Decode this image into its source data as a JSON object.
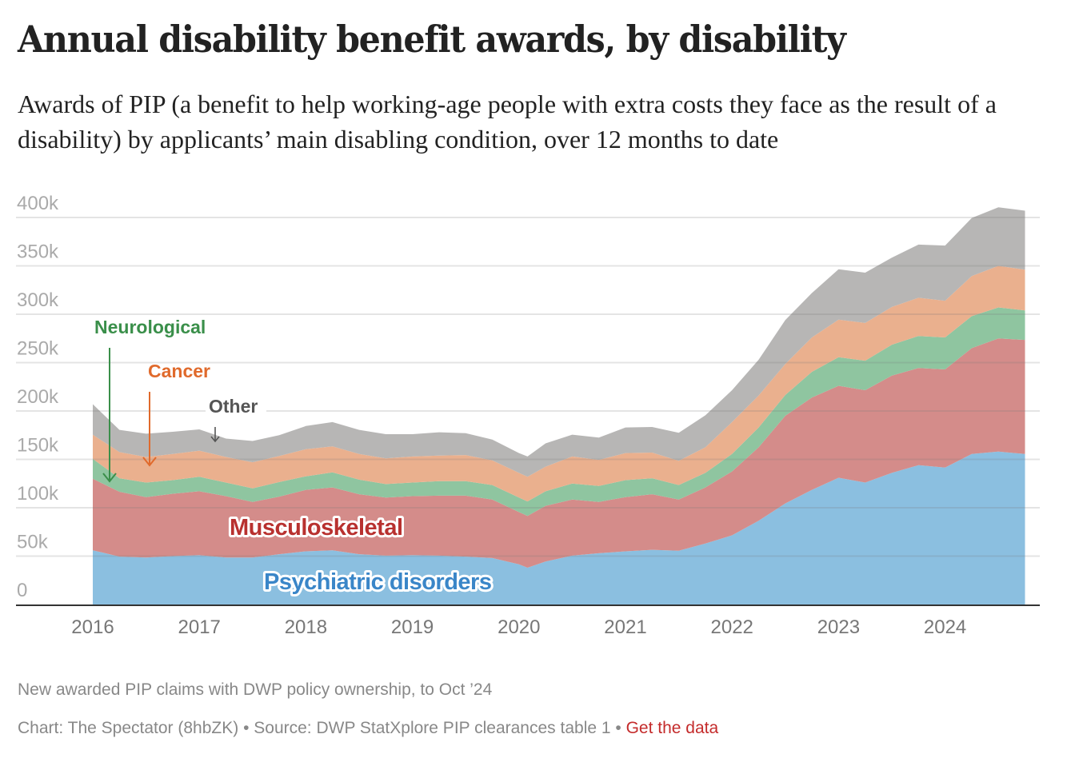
{
  "header": {
    "title": "Annual disability benefit awards, by disability",
    "subtitle": "Awards of PIP (a benefit to help working-age people with extra costs they face as the result of a disability) by applicants’ main disabling condition, over 12 months to date"
  },
  "footer": {
    "note": "New awarded PIP claims with DWP policy ownership, to Oct ’24",
    "source": "Chart: The Spectator (8hbZK) • Source: DWP StatXplore PIP clearances table 1 • ",
    "link_label": "Get the data",
    "link_color": "#c42b2b"
  },
  "chart_data": {
    "type": "area",
    "stacked": true,
    "title": "Annual disability benefit awards, by disability",
    "xlabel": "",
    "ylabel": "",
    "ylim": [
      0,
      400000
    ],
    "xlim": [
      2015.3,
      2025.0
    ],
    "grid": true,
    "legend": "inline-labels",
    "yticks": [
      0,
      50000,
      100000,
      150000,
      200000,
      250000,
      300000,
      350000,
      400000
    ],
    "ytick_labels": [
      "0",
      "50k",
      "100k",
      "150k",
      "200k",
      "250k",
      "300k",
      "350k",
      "400k"
    ],
    "xticks": [
      2016,
      2017,
      2018,
      2019,
      2020,
      2021,
      2022,
      2023,
      2024
    ],
    "xtick_labels": [
      "2016",
      "2017",
      "2018",
      "2019",
      "2020",
      "2021",
      "2022",
      "2023",
      "2024"
    ],
    "x": [
      2016.0,
      2016.25,
      2016.5,
      2016.75,
      2017.0,
      2017.25,
      2017.5,
      2017.75,
      2018.0,
      2018.25,
      2018.5,
      2018.75,
      2019.0,
      2019.25,
      2019.5,
      2019.75,
      2020.0,
      2020.08,
      2020.25,
      2020.5,
      2020.75,
      2021.0,
      2021.25,
      2021.5,
      2021.75,
      2022.0,
      2022.25,
      2022.5,
      2022.75,
      2023.0,
      2023.25,
      2023.5,
      2023.75,
      2024.0,
      2024.25,
      2024.5,
      2024.75
    ],
    "series": [
      {
        "name": "Psychiatric disorders",
        "color": "#8bbfe0",
        "label_color": "#3a86c8",
        "values": [
          56000,
          49500,
          48500,
          50000,
          51000,
          48500,
          48500,
          52000,
          55000,
          56000,
          52000,
          50500,
          51000,
          50500,
          49500,
          48000,
          41500,
          38000,
          44500,
          50500,
          53000,
          55000,
          56500,
          55500,
          63000,
          71500,
          86500,
          104500,
          118500,
          131000,
          126000,
          136000,
          144000,
          141500,
          155500,
          158000,
          155500
        ]
      },
      {
        "name": "Musculoskeletal",
        "color": "#d48c8a",
        "label_color": "#b8312f",
        "values": [
          74000,
          67000,
          62500,
          64500,
          66000,
          63500,
          57500,
          59500,
          63500,
          65000,
          62000,
          60000,
          61000,
          62000,
          63000,
          60500,
          54000,
          53500,
          57500,
          58000,
          53000,
          56000,
          57500,
          53000,
          58000,
          66000,
          76000,
          90500,
          95500,
          95000,
          95500,
          100500,
          100500,
          101500,
          109500,
          117000,
          118000
        ]
      },
      {
        "name": "Neurological",
        "color": "#8fc5a0",
        "label_color": "#3a8f4a",
        "values": [
          20500,
          14000,
          15000,
          14000,
          15000,
          14000,
          14000,
          15000,
          14000,
          15500,
          15000,
          14000,
          14000,
          15000,
          15000,
          15000,
          15000,
          15000,
          15000,
          16500,
          16500,
          17500,
          16500,
          15000,
          15000,
          18000,
          20500,
          21500,
          26500,
          29500,
          30500,
          32000,
          33000,
          33000,
          33000,
          32000,
          30500
        ]
      },
      {
        "name": "Cancer",
        "color": "#eab08e",
        "label_color": "#e06a2c",
        "values": [
          25000,
          27000,
          26500,
          27000,
          27000,
          26500,
          27000,
          27000,
          28000,
          27000,
          26500,
          26500,
          27000,
          26500,
          27000,
          25500,
          25500,
          25500,
          25500,
          28000,
          27000,
          28000,
          26500,
          25000,
          26500,
          33000,
          33000,
          32000,
          35500,
          39000,
          39000,
          39000,
          39500,
          38000,
          41500,
          43000,
          42000
        ]
      },
      {
        "name": "Other",
        "color": "#b7b6b5",
        "label_color": "#555555",
        "values": [
          31500,
          23000,
          24000,
          23000,
          22000,
          19000,
          22000,
          21500,
          24000,
          25000,
          25000,
          25000,
          23000,
          24000,
          22500,
          21500,
          20500,
          21000,
          24000,
          22500,
          23000,
          26500,
          26500,
          29000,
          33000,
          33000,
          37000,
          45500,
          46000,
          52000,
          52000,
          51000,
          55000,
          57000,
          60000,
          60500,
          61000
        ]
      }
    ],
    "annotations": [
      {
        "text": "Neurological",
        "series": "Neurological",
        "arrow": true,
        "style": "callout"
      },
      {
        "text": "Cancer",
        "series": "Cancer",
        "arrow": true,
        "style": "callout"
      },
      {
        "text": "Other",
        "series": "Other",
        "arrow": true,
        "style": "callout"
      },
      {
        "text": "Musculoskeletal",
        "series": "Musculoskeletal",
        "arrow": false,
        "style": "inline"
      },
      {
        "text": "Psychiatric disorders",
        "series": "Psychiatric disorders",
        "arrow": false,
        "style": "inline"
      }
    ]
  }
}
